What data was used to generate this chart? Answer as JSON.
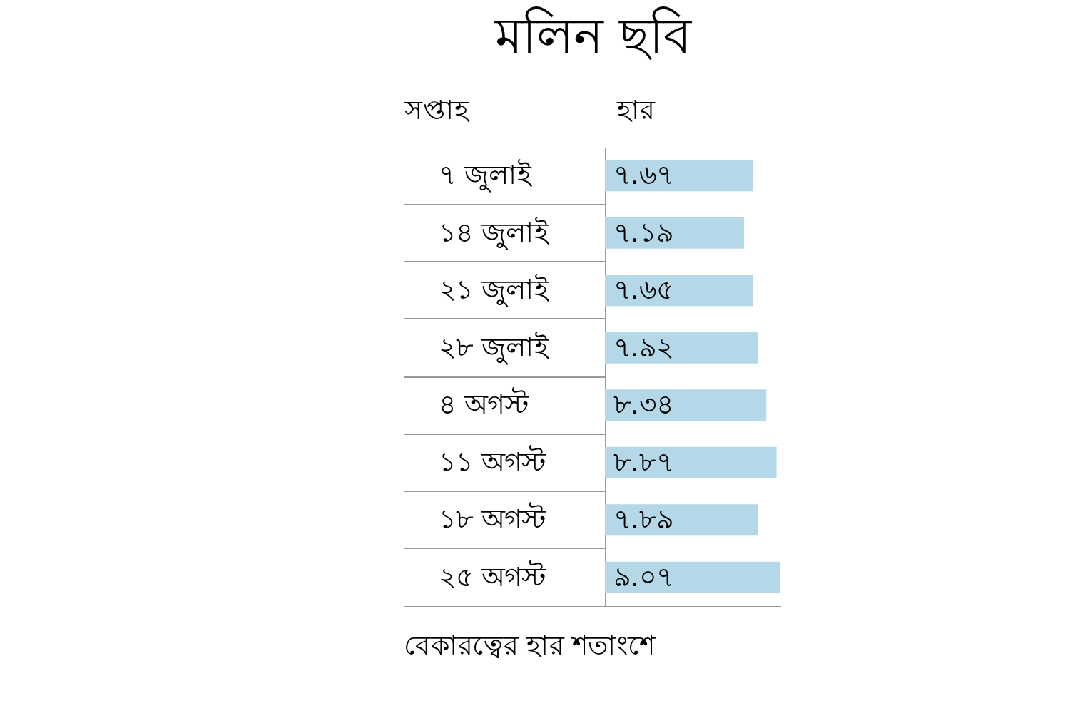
{
  "chart_data": {
    "type": "bar",
    "orientation": "horizontal",
    "title": "মলিন ছবি",
    "xlabel": "হার",
    "ylabel": "সপ্তাহ",
    "categories": [
      "৭ জুলাই",
      "১৪ জুলাই",
      "২১ জুলাই",
      "২৮ জুলাই",
      "৪ অগস্ট",
      "১১ অগস্ট",
      "১৮ অগস্ট",
      "২৫ অগস্ট"
    ],
    "values": [
      7.67,
      7.19,
      7.65,
      7.92,
      8.34,
      8.87,
      7.89,
      9.07
    ],
    "value_labels": [
      "৭.৬৭",
      "৭.১৯",
      "৭.৬৫",
      "৭.৯২",
      "৮.৩৪",
      "৮.৮৭",
      "৭.৮৯",
      "৯.০৭"
    ],
    "color": "#b5d8e9",
    "tick_labels": "y",
    "annotations": [
      "বেকারত্বের হার শতাংশে"
    ]
  }
}
